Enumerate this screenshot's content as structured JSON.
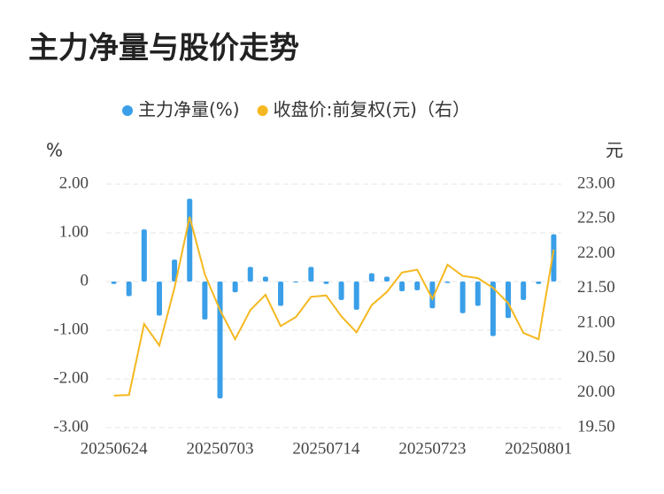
{
  "chart_data": {
    "type": "bar-line",
    "title": "主力净量与股价走势",
    "y_label": "%",
    "y2_label": "元",
    "categories": [
      "20250624",
      null,
      null,
      null,
      null,
      null,
      null,
      "20250703",
      null,
      null,
      null,
      null,
      null,
      null,
      "20250714",
      null,
      null,
      null,
      null,
      null,
      null,
      "20250723",
      null,
      null,
      null,
      null,
      null,
      null,
      "20250801",
      null
    ],
    "series": [
      {
        "name": "主力净量(%)",
        "color": "#3a9fe8",
        "type": "bar",
        "values": [
          -0.05,
          -0.3,
          1.07,
          -0.7,
          0.45,
          1.7,
          -0.78,
          -2.4,
          -0.22,
          0.3,
          0.1,
          -0.5,
          -0.02,
          0.3,
          -0.05,
          -0.38,
          -0.58,
          0.17,
          0.1,
          -0.2,
          -0.18,
          -0.55,
          -0.03,
          -0.65,
          -0.5,
          -1.12,
          -0.75,
          -0.38,
          -0.05,
          0.97
        ]
      },
      {
        "name": "收盘价:前复权(元)（右）",
        "color": "#f5b820",
        "type": "line",
        "axis": "y2",
        "values": [
          19.96,
          19.97,
          20.99,
          20.68,
          21.51,
          22.53,
          21.7,
          21.19,
          20.77,
          21.19,
          21.41,
          20.96,
          21.09,
          21.38,
          21.4,
          21.1,
          20.87,
          21.26,
          21.45,
          21.73,
          21.77,
          21.35,
          21.84,
          21.68,
          21.65,
          21.51,
          21.29,
          20.86,
          20.77,
          22.06
        ]
      }
    ],
    "ylim": [
      -3,
      2
    ],
    "yticks": [
      {
        "value": -3,
        "label": "-3.00"
      },
      {
        "value": -2,
        "label": "-2.00"
      },
      {
        "value": -1,
        "label": "-1.00"
      },
      0,
      {
        "value": 1,
        "label": "1.00"
      },
      {
        "value": 2,
        "label": "2.00"
      }
    ],
    "y2lim": [
      19.5,
      23
    ],
    "y2ticks": [
      {
        "value": 19.5,
        "label": "19.50"
      },
      {
        "value": 20,
        "label": "20.00"
      },
      {
        "value": 20.5,
        "label": "20.50"
      },
      {
        "value": 21,
        "label": "21.00"
      },
      {
        "value": 21.5,
        "label": "21.50"
      },
      {
        "value": 22,
        "label": "22.00"
      },
      {
        "value": 22.5,
        "label": "22.50"
      },
      {
        "value": 23,
        "label": "23.00"
      }
    ],
    "grid": true
  }
}
